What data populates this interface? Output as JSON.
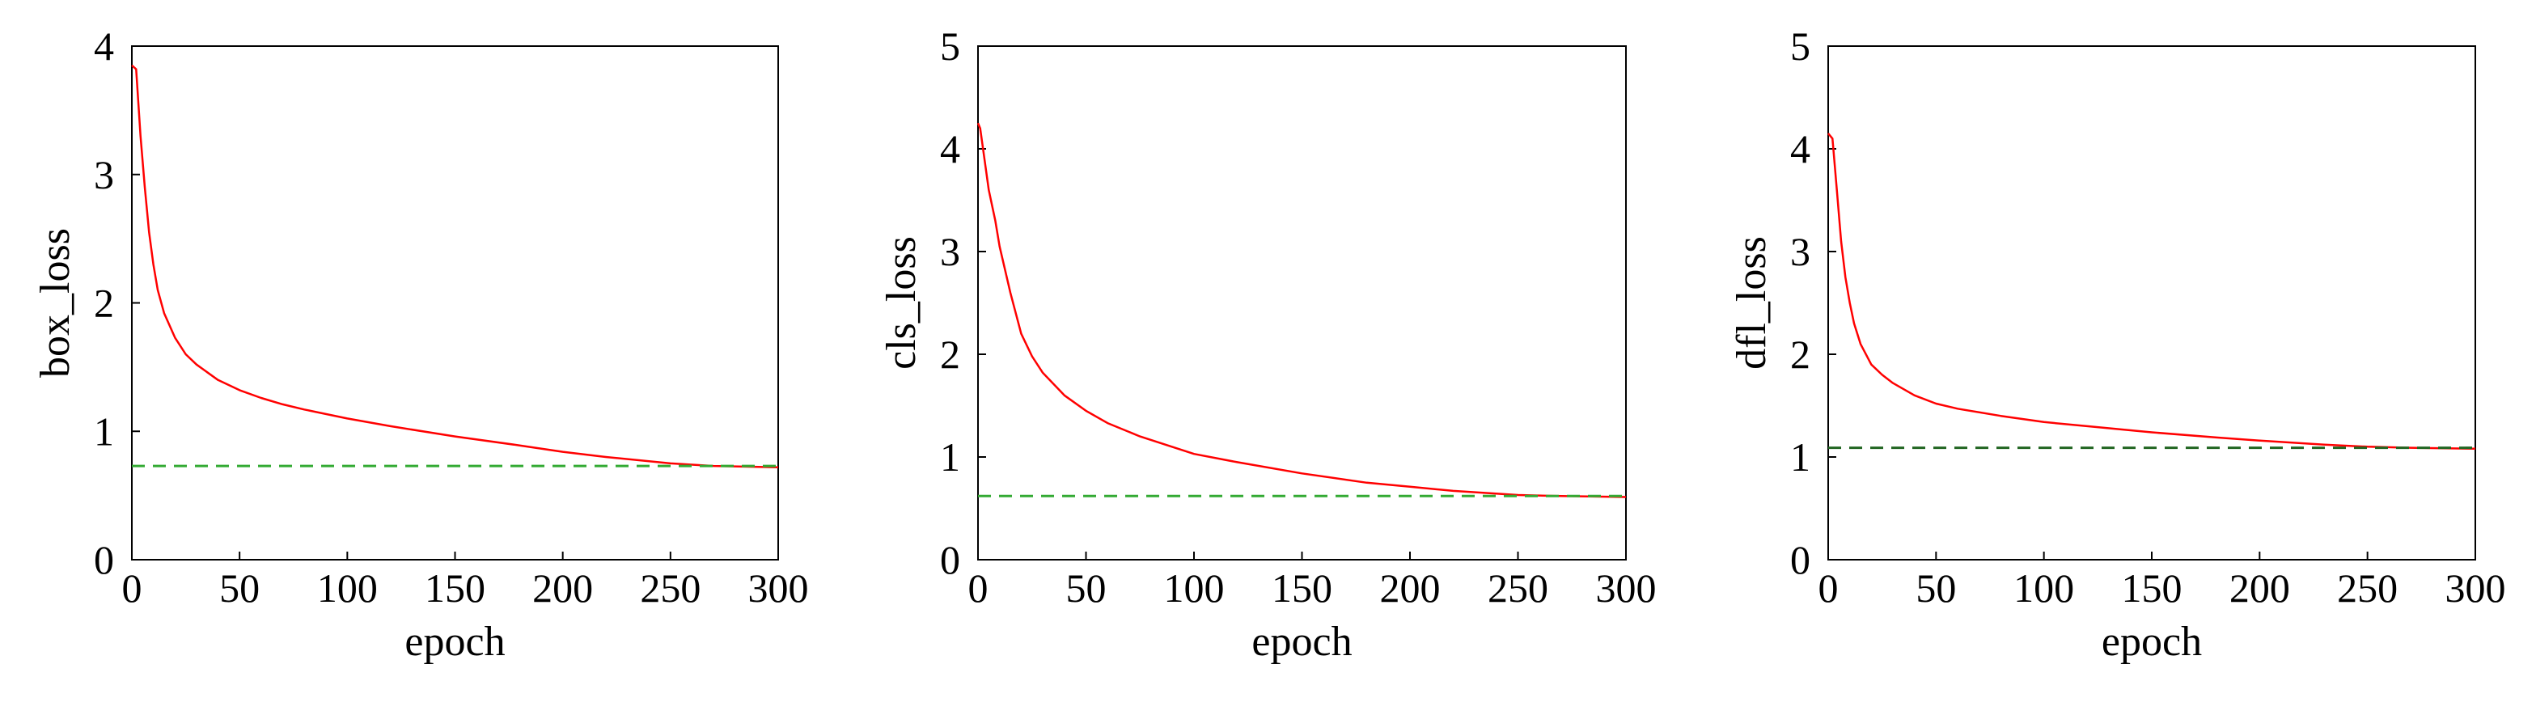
{
  "chart_data": [
    {
      "type": "line",
      "xlabel": "epoch",
      "ylabel": "box_loss",
      "xlim": [
        0,
        300
      ],
      "ylim": [
        0,
        4
      ],
      "xticks": [
        0,
        50,
        100,
        150,
        200,
        250,
        300
      ],
      "yticks": [
        0,
        1,
        2,
        3,
        4
      ],
      "grid": false,
      "series": [
        {
          "style": "solid",
          "color": "#ff0000",
          "x": [
            0,
            2,
            4,
            6,
            8,
            10,
            12,
            15,
            20,
            25,
            30,
            40,
            50,
            60,
            70,
            80,
            100,
            120,
            150,
            180,
            200,
            220,
            250,
            270,
            300
          ],
          "y": [
            3.85,
            3.82,
            3.3,
            2.9,
            2.55,
            2.3,
            2.1,
            1.92,
            1.73,
            1.6,
            1.52,
            1.4,
            1.32,
            1.26,
            1.21,
            1.17,
            1.1,
            1.04,
            0.96,
            0.89,
            0.84,
            0.8,
            0.75,
            0.73,
            0.72
          ]
        },
        {
          "style": "dashed",
          "color": "#33aa33",
          "x": [
            0,
            300
          ],
          "y": [
            0.73,
            0.73
          ]
        }
      ]
    },
    {
      "type": "line",
      "xlabel": "epoch",
      "ylabel": "cls_loss",
      "xlim": [
        0,
        300
      ],
      "ylim": [
        0,
        5
      ],
      "xticks": [
        0,
        50,
        100,
        150,
        200,
        250,
        300
      ],
      "yticks": [
        0,
        1,
        2,
        3,
        4,
        5
      ],
      "grid": false,
      "series": [
        {
          "style": "solid",
          "color": "#ff0000",
          "x": [
            0,
            1,
            3,
            5,
            8,
            10,
            15,
            20,
            25,
            30,
            40,
            50,
            60,
            75,
            100,
            120,
            150,
            180,
            200,
            220,
            250,
            270,
            300
          ],
          "y": [
            4.25,
            4.2,
            3.9,
            3.6,
            3.3,
            3.05,
            2.6,
            2.2,
            1.98,
            1.82,
            1.6,
            1.45,
            1.33,
            1.2,
            1.03,
            0.95,
            0.84,
            0.75,
            0.71,
            0.67,
            0.63,
            0.62,
            0.61
          ]
        },
        {
          "style": "dashed",
          "color": "#33aa33",
          "x": [
            0,
            300
          ],
          "y": [
            0.62,
            0.62
          ]
        }
      ]
    },
    {
      "type": "line",
      "xlabel": "epoch",
      "ylabel": "dfl_loss",
      "xlim": [
        0,
        300
      ],
      "ylim": [
        0,
        5
      ],
      "xticks": [
        0,
        50,
        100,
        150,
        200,
        250,
        300
      ],
      "yticks": [
        0,
        1,
        2,
        3,
        4,
        5
      ],
      "grid": false,
      "series": [
        {
          "style": "solid",
          "color": "#ff0000",
          "x": [
            0,
            2,
            4,
            6,
            8,
            10,
            12,
            15,
            20,
            25,
            30,
            40,
            50,
            60,
            80,
            100,
            120,
            150,
            180,
            200,
            230,
            250,
            270,
            300
          ],
          "y": [
            4.15,
            4.1,
            3.6,
            3.1,
            2.75,
            2.5,
            2.3,
            2.1,
            1.9,
            1.8,
            1.72,
            1.6,
            1.52,
            1.47,
            1.4,
            1.34,
            1.3,
            1.24,
            1.19,
            1.16,
            1.12,
            1.1,
            1.09,
            1.08
          ]
        },
        {
          "style": "dashed",
          "color": "#226622",
          "x": [
            0,
            300
          ],
          "y": [
            1.09,
            1.09
          ]
        }
      ]
    }
  ]
}
